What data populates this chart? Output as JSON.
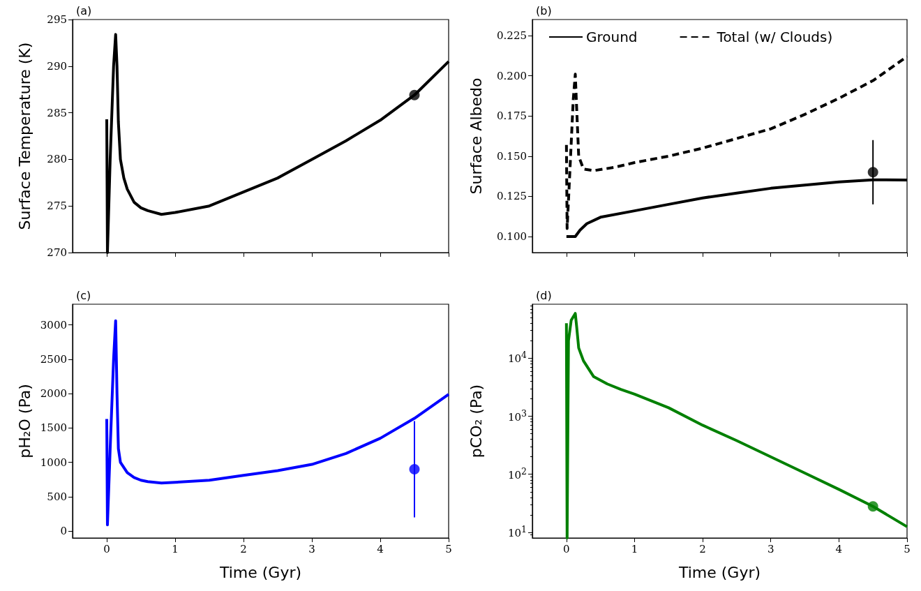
{
  "chart_data": [
    {
      "type": "line",
      "title": "(a)",
      "ylabel": "Surface Temperature (K)",
      "xlim": [
        -0.5,
        5
      ],
      "xticks": [
        0,
        1,
        2,
        3,
        4,
        5
      ],
      "ylim": [
        270,
        295
      ],
      "yticks": [
        270,
        275,
        280,
        285,
        290,
        295
      ],
      "tick_labels": "y",
      "grid": false,
      "series": [
        {
          "color": "#000000",
          "x": [
            0,
            0.01,
            0.05,
            0.1,
            0.13,
            0.15,
            0.17,
            0.2,
            0.25,
            0.3,
            0.4,
            0.5,
            0.6,
            0.8,
            1,
            1.5,
            2,
            2.5,
            3,
            3.5,
            4,
            4.5,
            5
          ],
          "values": [
            284.3,
            270,
            280,
            290,
            293.4,
            290,
            284,
            280,
            278,
            276.8,
            275.4,
            274.8,
            274.5,
            274.1,
            274.3,
            275,
            276.5,
            278,
            280,
            282,
            284.2,
            286.9,
            290.5
          ]
        },
        {
          "type": "scatter",
          "marker": "circle",
          "color": "#000000",
          "x": [
            4.5
          ],
          "values": [
            286.9
          ]
        }
      ]
    },
    {
      "type": "line",
      "title": "(b)",
      "ylabel": "Surface Albedo",
      "xlim": [
        -0.5,
        5
      ],
      "xticks": [
        0,
        1,
        2,
        3,
        4,
        5
      ],
      "ylim": [
        0.09,
        0.235
      ],
      "yticks": [
        {
          "value": 0.1,
          "label": "0.100"
        },
        {
          "value": 0.125,
          "label": "0.125"
        },
        {
          "value": 0.15,
          "label": "0.150"
        },
        {
          "value": 0.175,
          "label": "0.175"
        },
        {
          "value": 0.2,
          "label": "0.200"
        },
        {
          "value": 0.225,
          "label": "0.225"
        }
      ],
      "tick_labels": "y",
      "grid": false,
      "legend": "top",
      "series": [
        {
          "name": "Ground",
          "color": "#000000",
          "x": [
            0,
            0.13,
            0.2,
            0.3,
            0.5,
            1,
            1.5,
            2,
            2.5,
            3,
            3.5,
            4,
            4.5,
            5
          ],
          "values": [
            0.1,
            0.1,
            0.104,
            0.108,
            0.112,
            0.116,
            0.12,
            0.124,
            0.127,
            0.13,
            0.132,
            0.134,
            0.1353,
            0.1352
          ]
        },
        {
          "name": "Total (w/ Clouds)",
          "color": "#000000",
          "line_style": "dashed",
          "x": [
            0,
            0.01,
            0.05,
            0.1,
            0.13,
            0.15,
            0.18,
            0.25,
            0.4,
            0.7,
            1,
            1.5,
            2,
            2.5,
            3,
            3.5,
            4,
            4.5,
            5
          ],
          "values": [
            0.157,
            0.105,
            0.14,
            0.185,
            0.201,
            0.18,
            0.15,
            0.142,
            0.141,
            0.143,
            0.146,
            0.15,
            0.155,
            0.161,
            0.167,
            0.176,
            0.186,
            0.197,
            0.212
          ]
        },
        {
          "type": "scatter",
          "marker": "circle",
          "color": "#000000",
          "x": [
            4.5
          ],
          "values": [
            0.14
          ],
          "errors": [
            0.02
          ]
        }
      ]
    },
    {
      "type": "line",
      "title": "(c)",
      "xlabel": "Time (Gyr)",
      "ylabel": "pH₂O (Pa)",
      "xlim": [
        -0.5,
        5
      ],
      "xticks": [
        0,
        1,
        2,
        3,
        4,
        5
      ],
      "ylim": [
        -100,
        3300
      ],
      "yticks": [
        0,
        500,
        1000,
        1500,
        2000,
        2500,
        3000
      ],
      "grid": false,
      "series": [
        {
          "color": "#0000ff",
          "x": [
            0,
            0.01,
            0.05,
            0.1,
            0.13,
            0.15,
            0.17,
            0.2,
            0.3,
            0.4,
            0.5,
            0.6,
            0.8,
            1,
            1.5,
            2,
            2.5,
            3,
            3.5,
            4,
            4.5,
            5
          ],
          "values": [
            1630,
            90,
            1200,
            2500,
            3060,
            2000,
            1200,
            1000,
            850,
            780,
            740,
            720,
            700,
            710,
            740,
            810,
            880,
            970,
            1130,
            1350,
            1640,
            1990
          ]
        },
        {
          "type": "scatter",
          "marker": "circle",
          "color": "#0000ff",
          "x": [
            4.5
          ],
          "values": [
            900
          ],
          "errors": [
            700
          ]
        }
      ]
    },
    {
      "type": "line",
      "title": "(d)",
      "xlabel": "Time (Gyr)",
      "ylabel": "pCO₂ (Pa)",
      "log": true,
      "xlim": [
        -0.5,
        5
      ],
      "xticks": [
        0,
        1,
        2,
        3,
        4,
        5
      ],
      "ylim": [
        8,
        85000
      ],
      "yticks": [
        {
          "value": 10,
          "label": "10$^{1}$"
        },
        {
          "value": 100,
          "label": "10$^{2}$"
        },
        {
          "value": 1000,
          "label": "10$^{3}$"
        },
        {
          "value": 10000,
          "label": "10$^{4}$"
        }
      ],
      "grid": false,
      "series": [
        {
          "color": "#008000",
          "x": [
            0,
            0.01,
            0.03,
            0.07,
            0.13,
            0.15,
            0.18,
            0.25,
            0.4,
            0.6,
            0.8,
            1,
            1.5,
            2,
            2.5,
            3,
            3.5,
            4,
            4.5,
            5
          ],
          "values": [
            40000,
            8,
            20000,
            45000,
            59000,
            35000,
            15000,
            9000,
            4800,
            3600,
            2900,
            2400,
            1400,
            700,
            380,
            200,
            105,
            55,
            28,
            12.5
          ]
        },
        {
          "type": "scatter",
          "marker": "circle",
          "color": "#008000",
          "x": [
            4.5
          ],
          "values": [
            28
          ]
        }
      ]
    }
  ]
}
